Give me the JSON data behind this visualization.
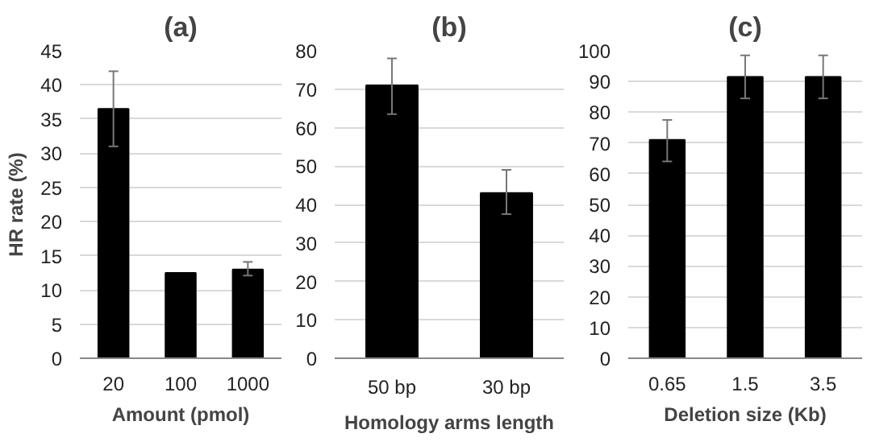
{
  "chart_data": [
    {
      "type": "bar",
      "title": "(a)",
      "xlabel": "Amount (pmol)",
      "ylabel": "HR rate (%)",
      "categories": [
        "20",
        "100",
        "1000"
      ],
      "values": [
        36.5,
        12.5,
        13
      ],
      "errors": [
        [
          31,
          42
        ],
        null,
        [
          12.1,
          14.1
        ]
      ],
      "color": "#000000",
      "ylim": [
        0,
        45
      ],
      "yticks": [
        0,
        5,
        10,
        15,
        20,
        25,
        30,
        35,
        40,
        45
      ],
      "grid": "y"
    },
    {
      "type": "bar",
      "title": "(b)",
      "xlabel": "Homology arms length",
      "categories": [
        "50 bp",
        "30 bp"
      ],
      "values": [
        71,
        43
      ],
      "errors": [
        [
          63.5,
          78
        ],
        [
          37.5,
          49
        ]
      ],
      "color": "#000000",
      "ylim": [
        0,
        80
      ],
      "yticks": [
        0,
        10,
        20,
        30,
        40,
        50,
        60,
        70,
        80
      ],
      "grid": "y"
    },
    {
      "type": "bar",
      "title": "(c)",
      "xlabel": "Deletion size (Kb)",
      "categories": [
        "0.65",
        "1.5",
        "3.5"
      ],
      "values": [
        71,
        91.5,
        91.5
      ],
      "errors": [
        [
          64,
          77.5
        ],
        [
          84.5,
          98.5
        ],
        [
          84.5,
          98.5
        ]
      ],
      "color": "#000000",
      "ylim": [
        0,
        100
      ],
      "yticks": [
        0,
        10,
        20,
        30,
        40,
        50,
        60,
        70,
        80,
        90,
        100
      ],
      "grid": "y"
    }
  ]
}
